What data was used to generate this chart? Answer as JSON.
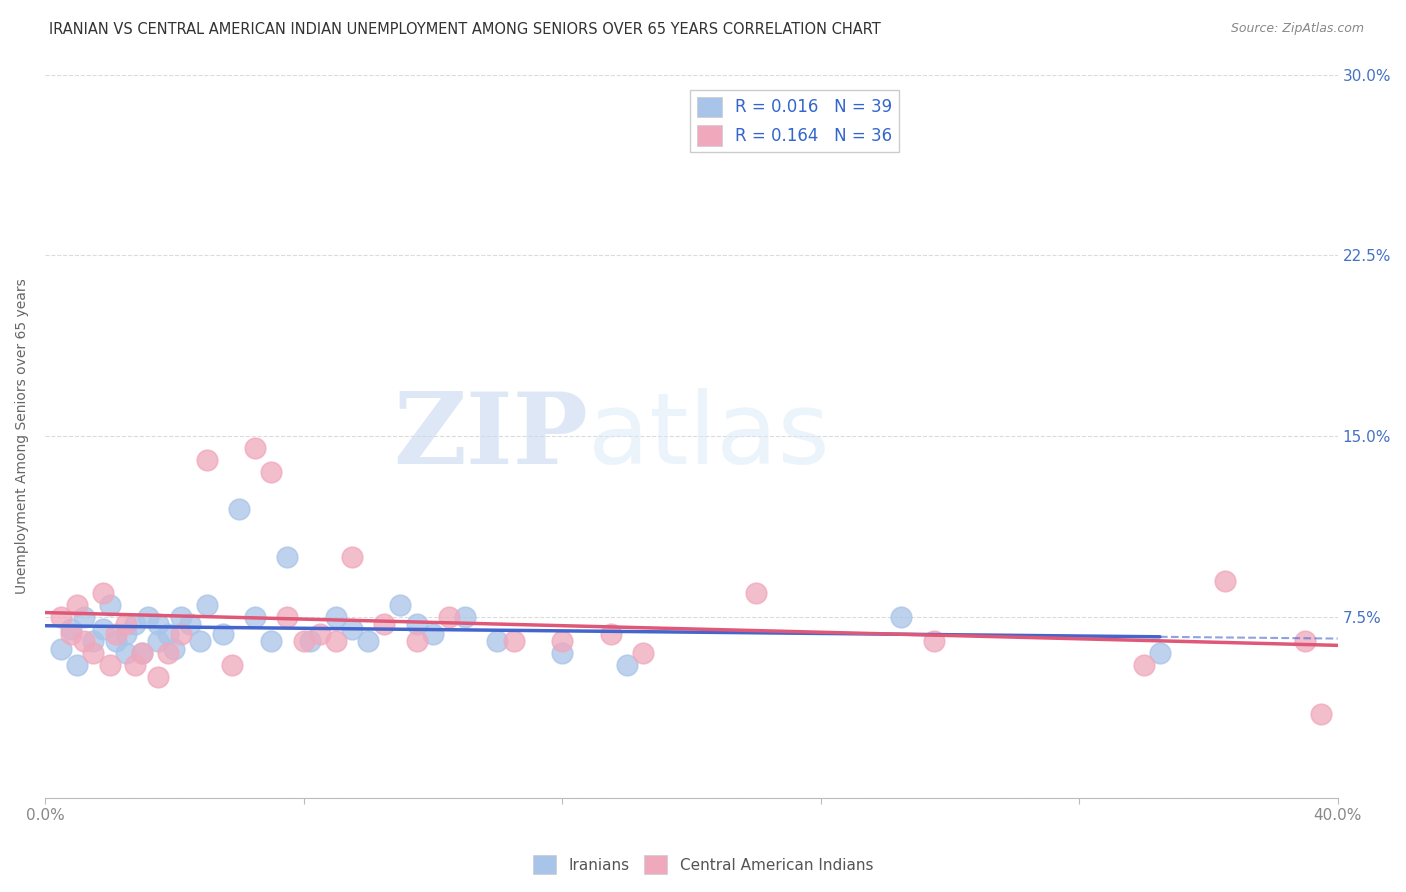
{
  "title": "IRANIAN VS CENTRAL AMERICAN INDIAN UNEMPLOYMENT AMONG SENIORS OVER 65 YEARS CORRELATION CHART",
  "source": "Source: ZipAtlas.com",
  "ylabel": "Unemployment Among Seniors over 65 years",
  "xmin": 0.0,
  "xmax": 0.4,
  "ymin": 0.0,
  "ymax": 0.3,
  "yticks": [
    0.0,
    0.075,
    0.15,
    0.225,
    0.3
  ],
  "ytick_labels": [
    "",
    "7.5%",
    "15.0%",
    "22.5%",
    "30.0%"
  ],
  "xticks": [
    0.0,
    0.08,
    0.16,
    0.24,
    0.32,
    0.4
  ],
  "xtick_labels": [
    "0.0%",
    "",
    "",
    "",
    "",
    "40.0%"
  ],
  "blue_color": "#A8C4E8",
  "pink_color": "#F0A8BC",
  "blue_line_color": "#4466CC",
  "pink_line_color": "#E05878",
  "grid_color": "#CCCCCC",
  "legend_label_blue": "Iranians",
  "legend_label_pink": "Central American Indians",
  "iranians_x": [
    0.005,
    0.008,
    0.01,
    0.012,
    0.015,
    0.018,
    0.02,
    0.022,
    0.025,
    0.025,
    0.028,
    0.03,
    0.032,
    0.035,
    0.035,
    0.038,
    0.04,
    0.042,
    0.045,
    0.048,
    0.05,
    0.055,
    0.06,
    0.065,
    0.07,
    0.075,
    0.082,
    0.09,
    0.095,
    0.1,
    0.11,
    0.115,
    0.12,
    0.13,
    0.14,
    0.16,
    0.18,
    0.265,
    0.345
  ],
  "iranians_y": [
    0.062,
    0.07,
    0.055,
    0.075,
    0.065,
    0.07,
    0.08,
    0.065,
    0.06,
    0.068,
    0.072,
    0.06,
    0.075,
    0.065,
    0.072,
    0.068,
    0.062,
    0.075,
    0.072,
    0.065,
    0.08,
    0.068,
    0.12,
    0.075,
    0.065,
    0.1,
    0.065,
    0.075,
    0.07,
    0.065,
    0.08,
    0.072,
    0.068,
    0.075,
    0.065,
    0.06,
    0.055,
    0.075,
    0.06
  ],
  "central_x": [
    0.005,
    0.008,
    0.01,
    0.012,
    0.015,
    0.018,
    0.02,
    0.022,
    0.025,
    0.028,
    0.03,
    0.035,
    0.038,
    0.042,
    0.05,
    0.058,
    0.065,
    0.07,
    0.075,
    0.08,
    0.085,
    0.09,
    0.095,
    0.105,
    0.115,
    0.125,
    0.145,
    0.16,
    0.175,
    0.185,
    0.22,
    0.275,
    0.34,
    0.365,
    0.39,
    0.395
  ],
  "central_y": [
    0.075,
    0.068,
    0.08,
    0.065,
    0.06,
    0.085,
    0.055,
    0.068,
    0.072,
    0.055,
    0.06,
    0.05,
    0.06,
    0.068,
    0.14,
    0.055,
    0.145,
    0.135,
    0.075,
    0.065,
    0.068,
    0.065,
    0.1,
    0.072,
    0.065,
    0.075,
    0.065,
    0.065,
    0.068,
    0.06,
    0.085,
    0.065,
    0.055,
    0.09,
    0.065,
    0.035
  ]
}
